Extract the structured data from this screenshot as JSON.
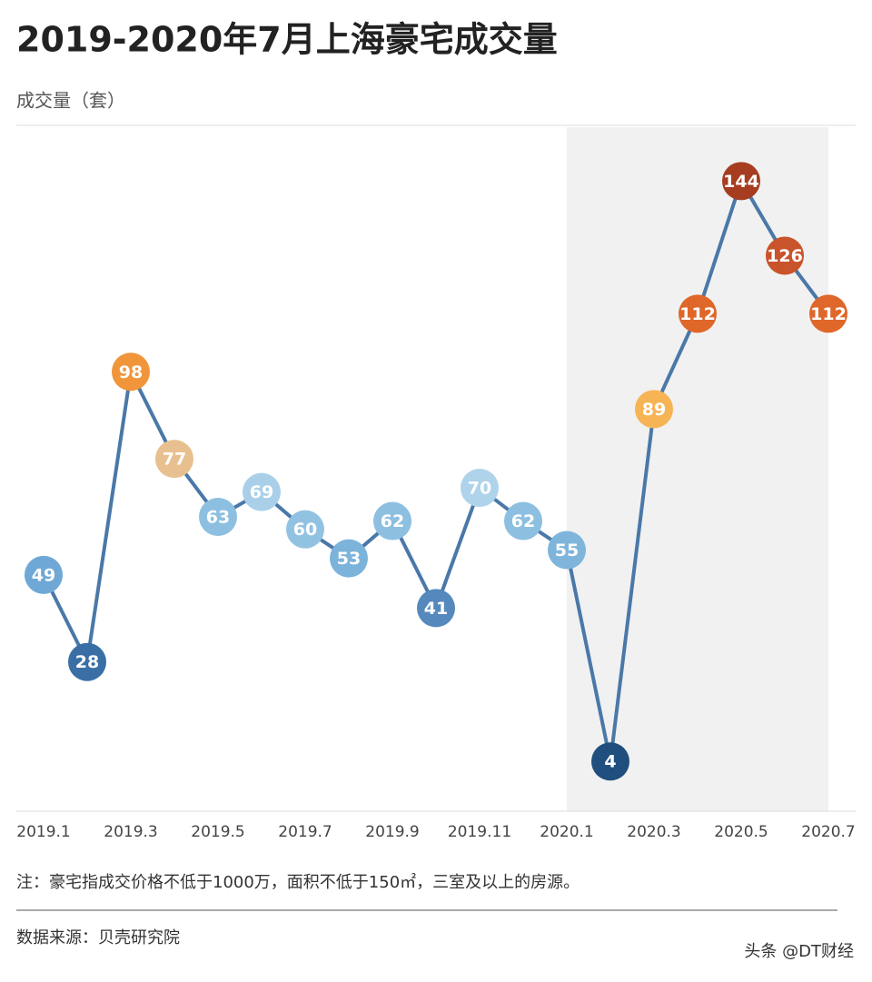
{
  "chart_data": {
    "type": "line",
    "title": "2019-2020年7月上海豪宅成交量",
    "y_label": "成交量（套）",
    "categories": [
      "2019.1",
      null,
      "2019.3",
      null,
      "2019.5",
      null,
      "2019.7",
      null,
      "2019.9",
      null,
      "2019.11",
      null,
      "2020.1",
      null,
      "2020.3",
      null,
      "2020.5",
      null,
      "2020.7"
    ],
    "values": [
      49,
      28,
      98,
      77,
      63,
      69,
      60,
      53,
      62,
      41,
      70,
      62,
      55,
      4,
      89,
      112,
      144,
      126,
      112
    ],
    "color": "#4a78a8",
    "point_colors": [
      "#6fa8d6",
      "#3a6fa6",
      "#f0953a",
      "#e8c08f",
      "#8dbfe0",
      "#a9d0e8",
      "#92c2e2",
      "#7cb3da",
      "#8dbfe0",
      "#5589bd",
      "#aed3ea",
      "#8dbfe0",
      "#7fb5db",
      "#1f4e7f",
      "#f6b455",
      "#e0672a",
      "#a63d20",
      "#c9532a",
      "#e0672a"
    ],
    "highlight_range": [
      "2020.1",
      "2020.7"
    ],
    "ylim": [
      -8,
      157
    ],
    "note": "注：豪宅指成交价格不低于1000万，面积不低于150㎡，三室及以上的房源。",
    "source": "数据来源：贝壳研究院",
    "watermark": "头条 @DT财经"
  }
}
